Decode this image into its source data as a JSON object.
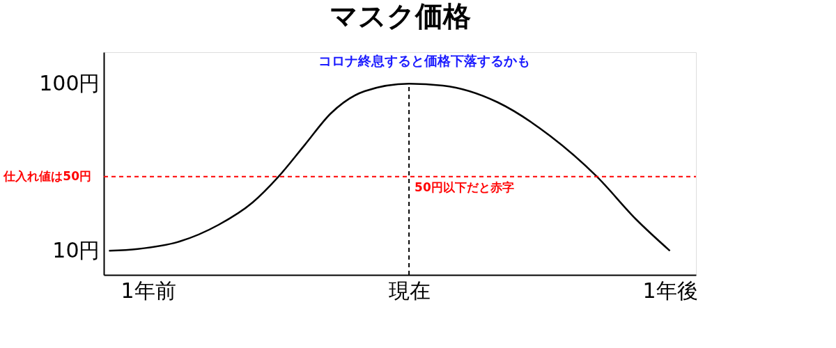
{
  "chart_data": {
    "type": "line",
    "title": "マスク価格",
    "x": [
      -1.15,
      -1.04,
      -0.88,
      -0.73,
      -0.6,
      -0.5,
      -0.4,
      -0.3,
      -0.17,
      0,
      0.13,
      0.34,
      0.54,
      0.72,
      0.87,
      1
    ],
    "series": [
      {
        "color": "#000000",
        "values": [
          10,
          11,
          15,
          24,
          36,
          50,
          67,
          84,
          96,
          100,
          99,
          90,
          72,
          50,
          27,
          10
        ]
      }
    ],
    "xlim": [
      -1.17,
      1.1
    ],
    "xticks": [
      {
        "value": -1,
        "label": "1年前"
      },
      {
        "value": 0,
        "label": "現在"
      },
      {
        "value": 1,
        "label": "1年後"
      }
    ],
    "ylim": [
      -3,
      117
    ],
    "yticks": [
      {
        "value": 10,
        "label": "10円"
      },
      {
        "value": 100,
        "label": "100円"
      }
    ],
    "ref_lines": [
      {
        "axis": "y",
        "value": 50,
        "label": "仕入れ値は50円",
        "color": "#ff0000",
        "line_style": "dashed"
      },
      {
        "axis": "x",
        "value": 0,
        "label": null,
        "color": "#000000",
        "line_style": "dashed"
      }
    ],
    "annotations": [
      "コロナ終息すると価格下落するかも",
      {
        "text": "50円以下だと赤字",
        "x": 0,
        "y": 50
      }
    ],
    "grid": false,
    "marker": "none",
    "line_style": "solid"
  }
}
